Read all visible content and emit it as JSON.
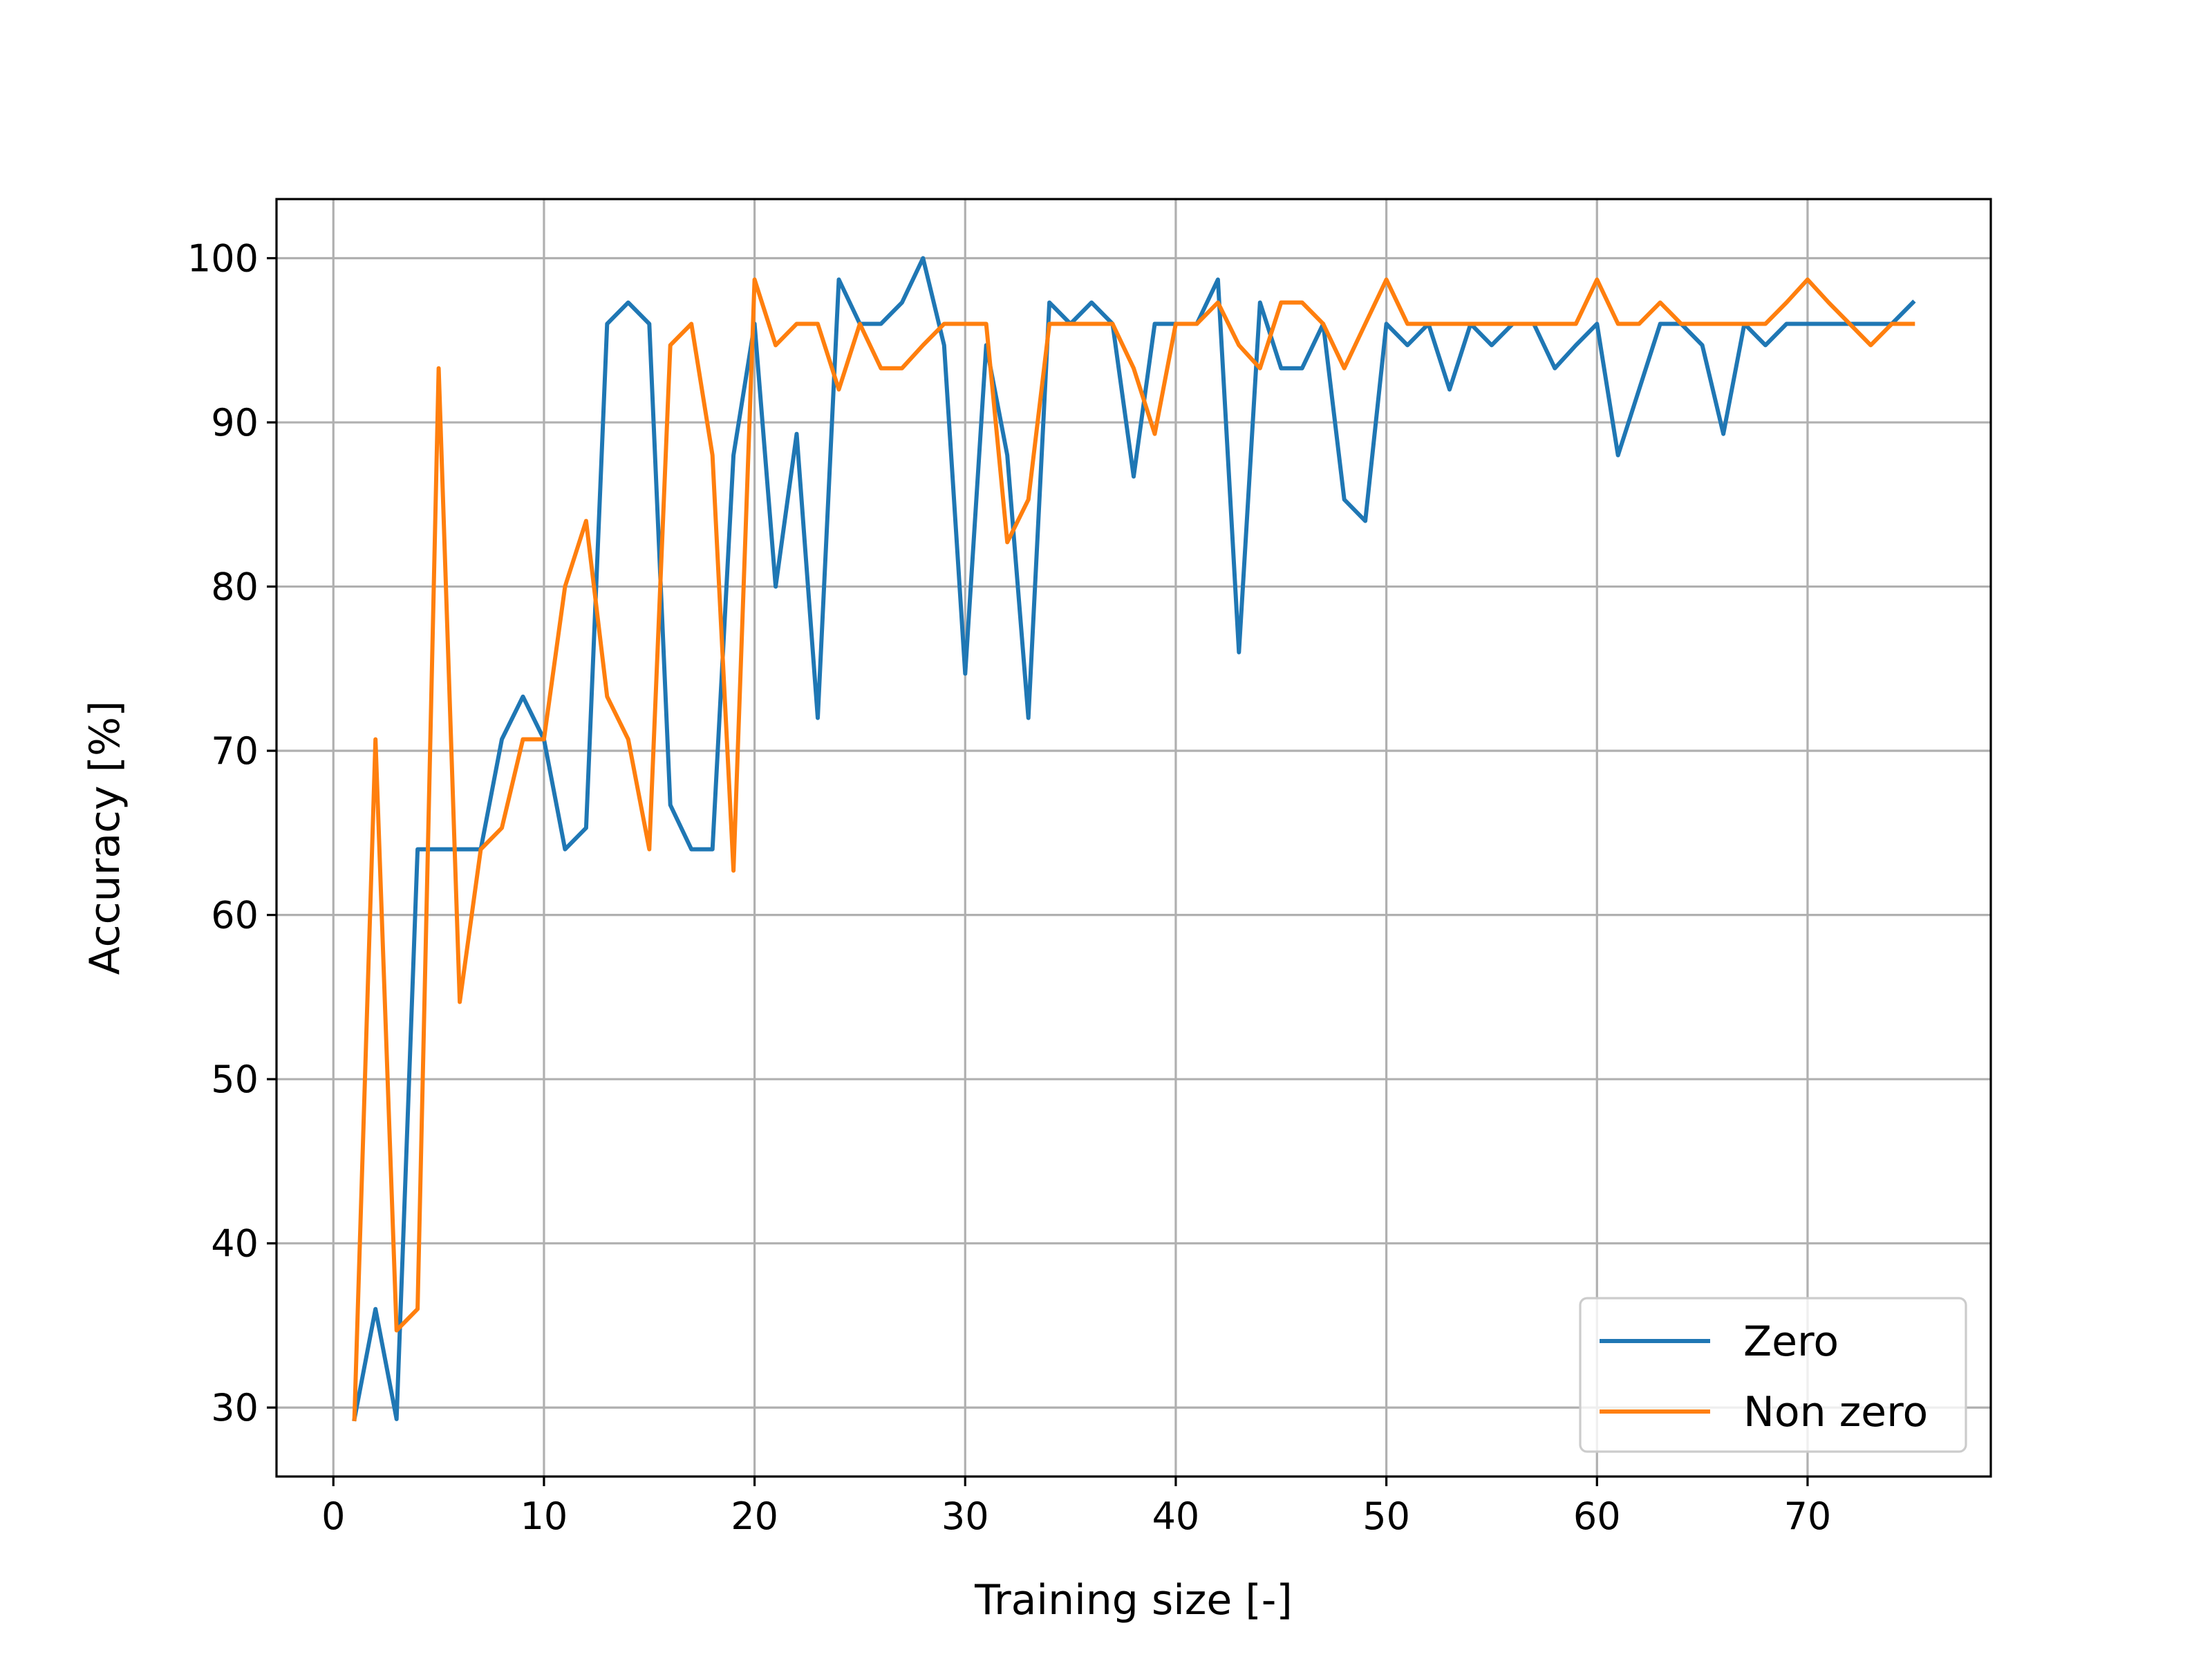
{
  "chart_data": {
    "type": "line",
    "xlabel": "Training size [-]",
    "ylabel": "Accuracy [%]",
    "xlim": [
      -2.7,
      78.7
    ],
    "ylim": [
      25.8,
      103.6
    ],
    "xticks": [
      0,
      10,
      20,
      30,
      40,
      50,
      60,
      70
    ],
    "yticks": [
      30,
      40,
      50,
      60,
      70,
      80,
      90,
      100
    ],
    "grid": true,
    "legend_position": "lower right",
    "x": [
      1,
      2,
      3,
      4,
      5,
      6,
      7,
      8,
      9,
      10,
      11,
      12,
      13,
      14,
      15,
      16,
      17,
      18,
      19,
      20,
      21,
      22,
      23,
      24,
      25,
      26,
      27,
      28,
      29,
      30,
      31,
      32,
      33,
      34,
      35,
      36,
      37,
      38,
      39,
      40,
      41,
      42,
      43,
      44,
      45,
      46,
      47,
      48,
      49,
      50,
      51,
      52,
      53,
      54,
      55,
      56,
      57,
      58,
      59,
      60,
      61,
      62,
      63,
      64,
      65,
      66,
      67,
      68,
      69,
      70,
      71,
      72,
      73,
      74,
      75
    ],
    "series": [
      {
        "name": "Zero",
        "color": "#1f77b4",
        "values": [
          29.3,
          36.0,
          29.3,
          64.0,
          64.0,
          64.0,
          64.0,
          70.7,
          73.3,
          70.7,
          64.0,
          65.3,
          96.0,
          97.3,
          96.0,
          66.7,
          64.0,
          64.0,
          88.0,
          96.0,
          80.0,
          89.3,
          72.0,
          98.7,
          96.0,
          96.0,
          97.3,
          100.0,
          94.7,
          74.7,
          94.7,
          88.0,
          72.0,
          97.3,
          96.0,
          97.3,
          96.0,
          86.7,
          96.0,
          96.0,
          96.0,
          98.7,
          76.0,
          97.3,
          93.3,
          93.3,
          96.0,
          85.3,
          84.0,
          96.0,
          94.7,
          96.0,
          92.0,
          96.0,
          94.7,
          96.0,
          96.0,
          93.3,
          94.7,
          96.0,
          88.0,
          92.0,
          96.0,
          96.0,
          94.7,
          89.3,
          96.0,
          94.7,
          96.0,
          96.0,
          96.0,
          96.0,
          96.0,
          96.0,
          97.3
        ]
      },
      {
        "name": "Non zero",
        "color": "#ff7f0e",
        "values": [
          29.3,
          70.7,
          34.7,
          36.0,
          93.3,
          54.7,
          64.0,
          65.3,
          70.7,
          70.7,
          80.0,
          84.0,
          73.3,
          70.7,
          64.0,
          94.7,
          96.0,
          88.0,
          62.7,
          98.7,
          94.7,
          96.0,
          96.0,
          92.0,
          96.0,
          93.3,
          93.3,
          94.7,
          96.0,
          96.0,
          96.0,
          82.7,
          85.3,
          96.0,
          96.0,
          96.0,
          96.0,
          93.3,
          89.3,
          96.0,
          96.0,
          97.3,
          94.7,
          93.3,
          97.3,
          97.3,
          96.0,
          93.3,
          96.0,
          98.7,
          96.0,
          96.0,
          96.0,
          96.0,
          96.0,
          96.0,
          96.0,
          96.0,
          96.0,
          98.7,
          96.0,
          96.0,
          97.3,
          96.0,
          96.0,
          96.0,
          96.0,
          96.0,
          97.3,
          98.7,
          97.3,
          96.0,
          94.7,
          96.0,
          96.0
        ]
      }
    ]
  }
}
